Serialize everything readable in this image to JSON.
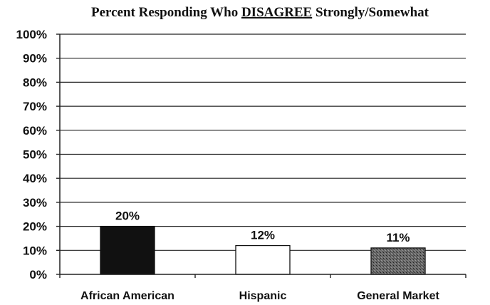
{
  "chart_data": {
    "type": "bar",
    "title": {
      "prefix": "Percent Responding Who ",
      "emphasis": "DISAGREE",
      "suffix": " Strongly/Somewhat"
    },
    "categories": [
      "African American",
      "Hispanic",
      "General Market"
    ],
    "values": [
      20,
      12,
      11
    ],
    "data_labels": [
      "20%",
      "12%",
      "11%"
    ],
    "bar_fills": [
      "#111111",
      "#ffffff",
      "#4a4a4a"
    ],
    "ylim": [
      0,
      100
    ],
    "y_ticks": [
      "0%",
      "10%",
      "20%",
      "30%",
      "40%",
      "50%",
      "60%",
      "70%",
      "80%",
      "90%",
      "100%"
    ],
    "grid": true,
    "legend": "none",
    "xlabel": "",
    "ylabel": ""
  }
}
